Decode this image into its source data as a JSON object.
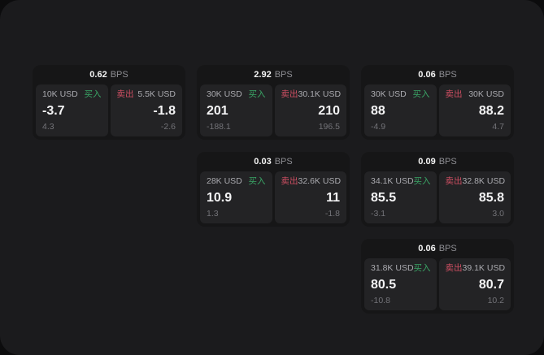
{
  "labels": {
    "bps": "BPS",
    "buy": "买入",
    "sell": "卖出"
  },
  "colors": {
    "background": "#1b1b1d",
    "card": "#161617",
    "panel": "#232325",
    "buy_green": "#3aa566",
    "sell_red": "#d04f63"
  },
  "cards": [
    {
      "bps": "0.62",
      "buy": {
        "amount": "10K USD",
        "value": "-3.7",
        "delta": "4.3"
      },
      "sell": {
        "amount": "5.5K USD",
        "value": "-1.8",
        "delta": "-2.6"
      }
    },
    {
      "bps": "2.92",
      "buy": {
        "amount": "30K USD",
        "value": "201",
        "delta": "-188.1"
      },
      "sell": {
        "amount": "30.1K USD",
        "value": "210",
        "delta": "196.5"
      }
    },
    {
      "bps": "0.06",
      "buy": {
        "amount": "30K USD",
        "value": "88",
        "delta": "-4.9"
      },
      "sell": {
        "amount": "30K USD",
        "value": "88.2",
        "delta": "4.7"
      }
    },
    {
      "bps": "0.03",
      "buy": {
        "amount": "28K USD",
        "value": "10.9",
        "delta": "1.3"
      },
      "sell": {
        "amount": "32.6K USD",
        "value": "11",
        "delta": "-1.8"
      }
    },
    {
      "bps": "0.09",
      "buy": {
        "amount": "34.1K USD",
        "value": "85.5",
        "delta": "-3.1"
      },
      "sell": {
        "amount": "32.8K USD",
        "value": "85.8",
        "delta": "3.0"
      }
    },
    {
      "bps": "0.06",
      "buy": {
        "amount": "31.8K USD",
        "value": "80.5",
        "delta": "-10.8"
      },
      "sell": {
        "amount": "39.1K USD",
        "value": "80.7",
        "delta": "10.2"
      }
    }
  ]
}
